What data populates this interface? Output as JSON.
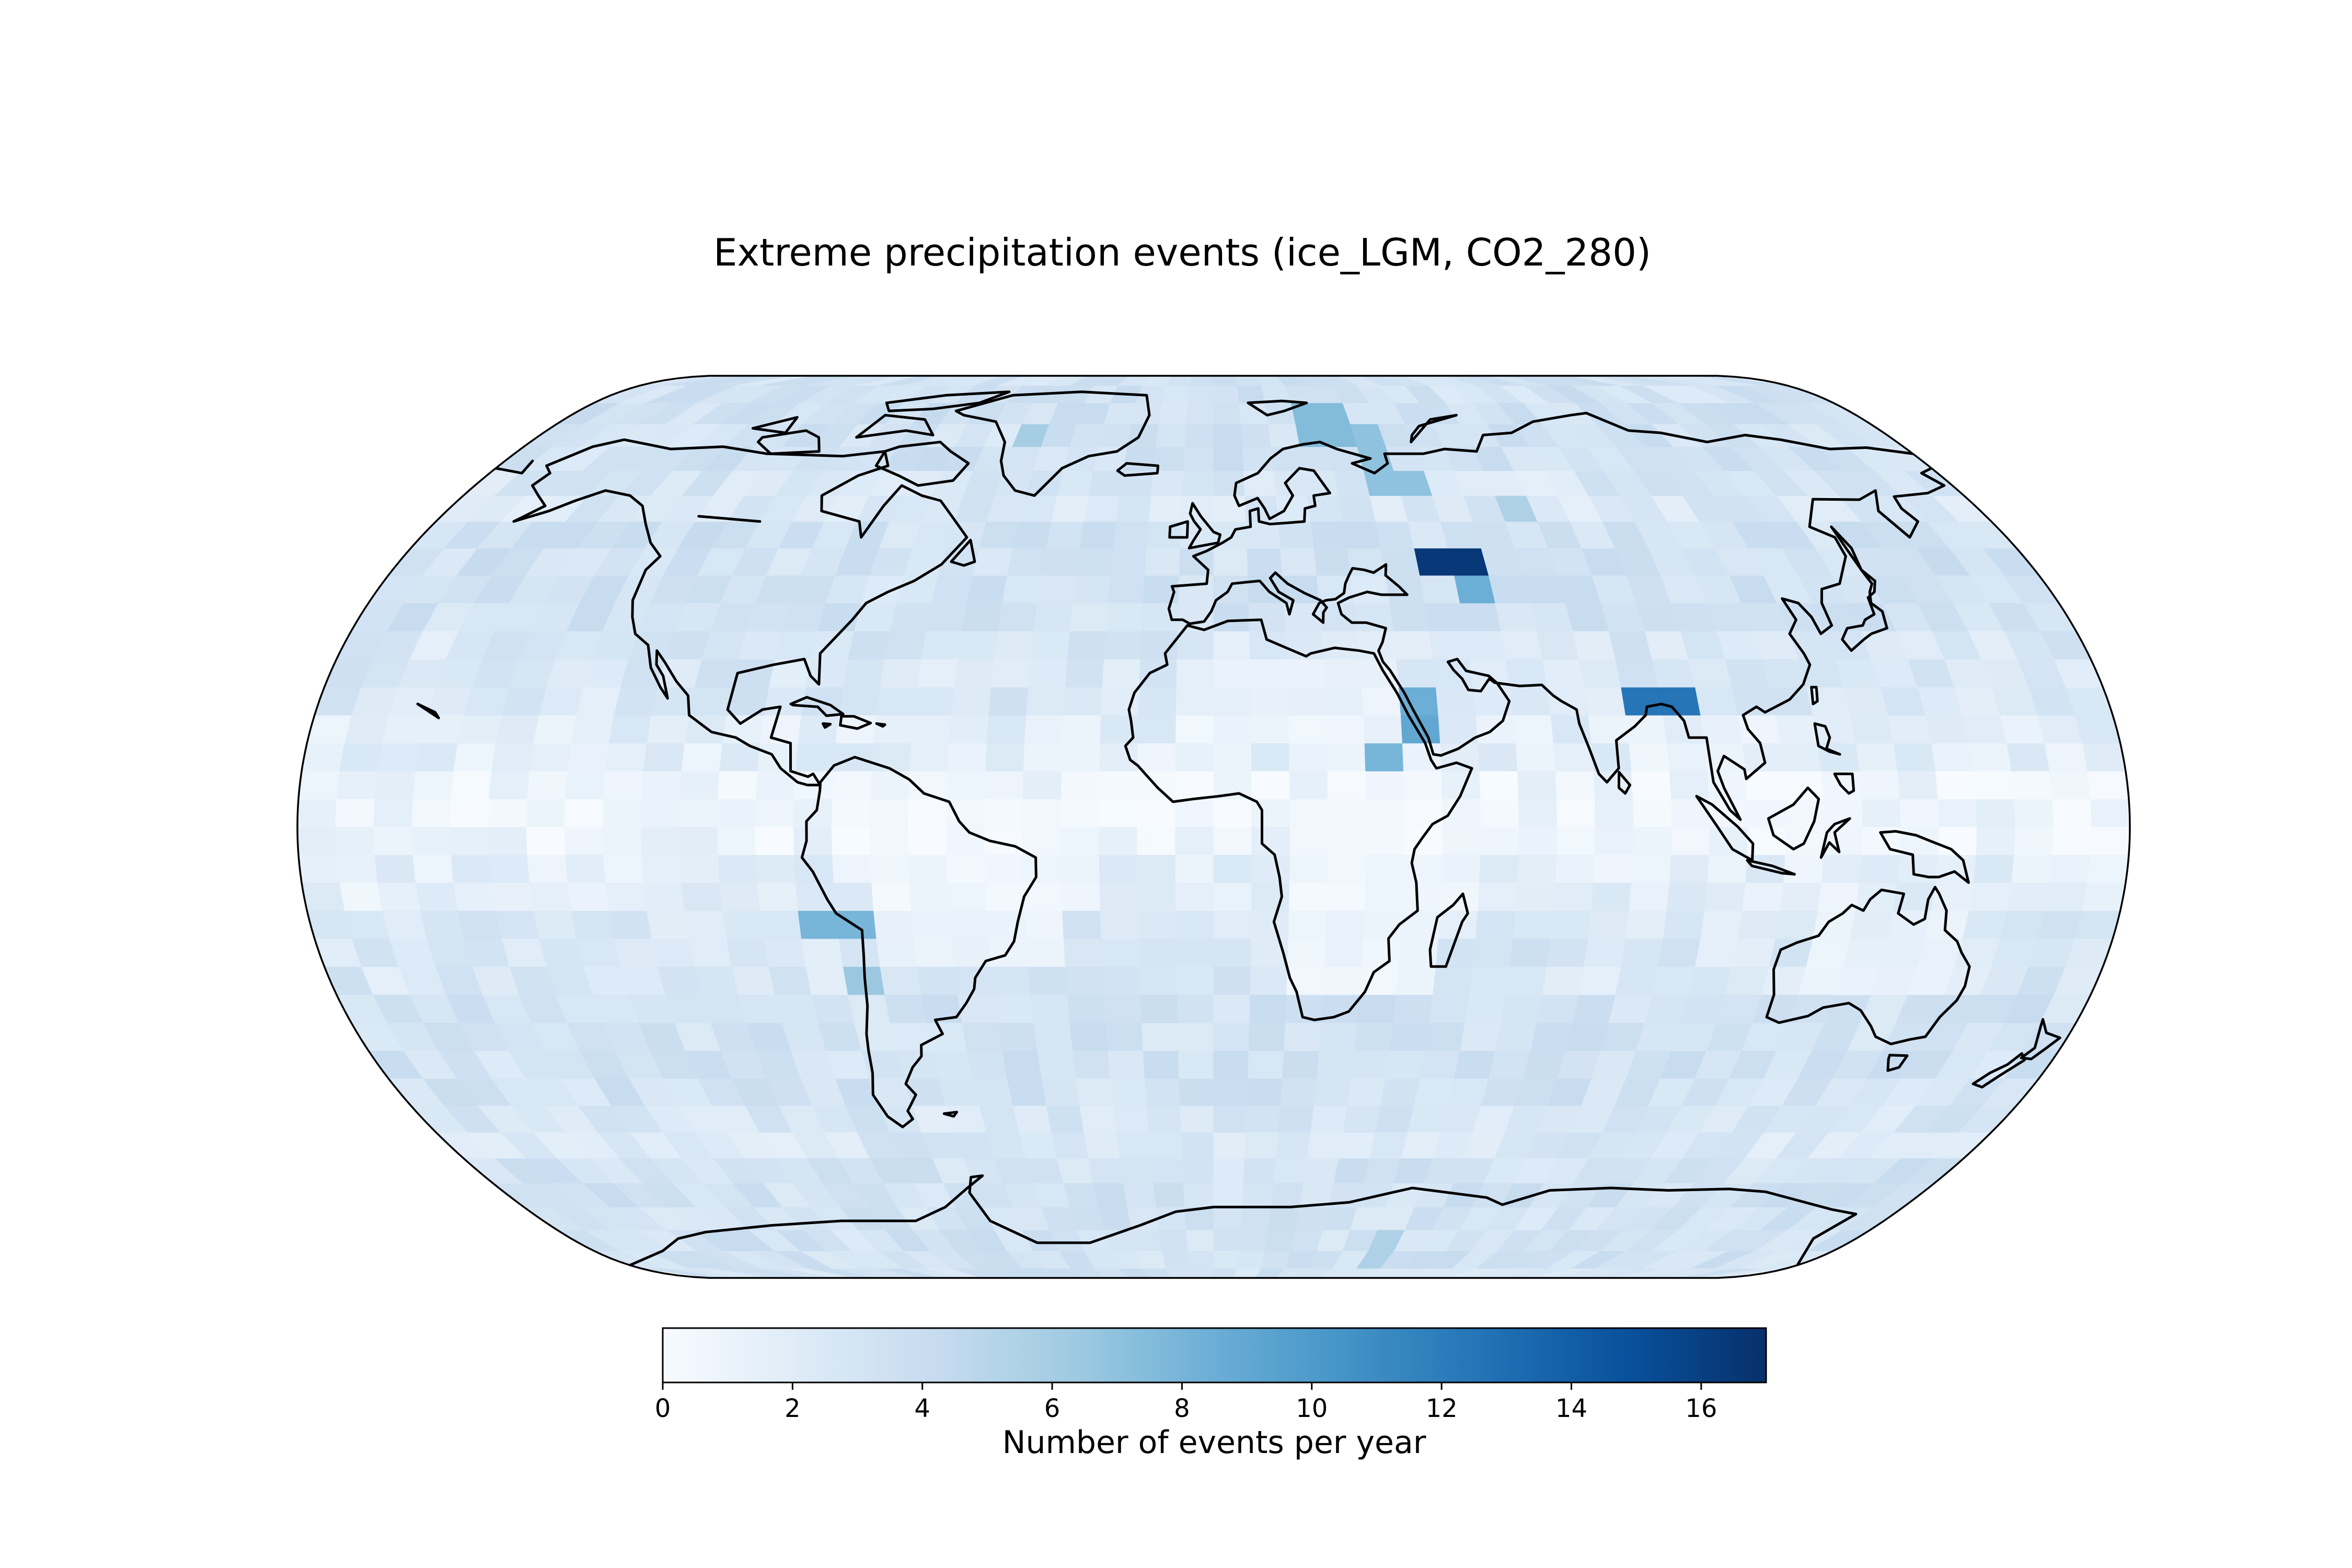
{
  "chart_data": {
    "type": "heatmap",
    "title": "Extreme precipitation events (ice_LGM, CO2_280)",
    "projection": "Natural Earth",
    "colormap": "Blues",
    "colorbar": {
      "label": "Number of events per year",
      "min": 0,
      "max": 17,
      "ticks": [
        0,
        2,
        4,
        6,
        8,
        10,
        12,
        14,
        16
      ],
      "tick_labels": [
        "0",
        "2",
        "4",
        "6",
        "8",
        "10",
        "12",
        "14",
        "16"
      ],
      "placement": "bottom"
    },
    "grid": {
      "lon_step": 7.5,
      "lat_step": 5.0,
      "lat_range": [
        -90,
        90
      ],
      "lon_range": [
        -180,
        180
      ]
    },
    "hotspots": [
      {
        "lon": 52.5,
        "lat": 47.5,
        "value": 16.5
      },
      {
        "lon": 56.0,
        "lat": 47.5,
        "value": 10.5
      },
      {
        "lon": 53.0,
        "lat": 42.5,
        "value": 8.5
      },
      {
        "lon": 58.0,
        "lat": 42.5,
        "value": 8.0
      },
      {
        "lon": 90.0,
        "lat": 22.5,
        "value": 12.5
      },
      {
        "lon": 43.0,
        "lat": 22.5,
        "value": 8.5
      },
      {
        "lon": 40.0,
        "lat": 17.5,
        "value": 9.0
      },
      {
        "lon": 37.0,
        "lat": 12.5,
        "value": 8.0
      },
      {
        "lon": -75.0,
        "lat": -17.5,
        "value": 8.0
      },
      {
        "lon": -68.0,
        "lat": -27.5,
        "value": 6.5
      },
      {
        "lon": 30.0,
        "lat": 75.0,
        "value": 7.5
      },
      {
        "lon": 40.0,
        "lat": 70.0,
        "value": 7.0
      },
      {
        "lon": 45.0,
        "lat": 62.5,
        "value": 7.0
      },
      {
        "lon": 70.0,
        "lat": 57.5,
        "value": 5.5
      },
      {
        "lon": -50.0,
        "lat": 72.5,
        "value": 6.0
      },
      {
        "lon": 50.0,
        "lat": -80.0,
        "value": 5.5
      }
    ]
  }
}
